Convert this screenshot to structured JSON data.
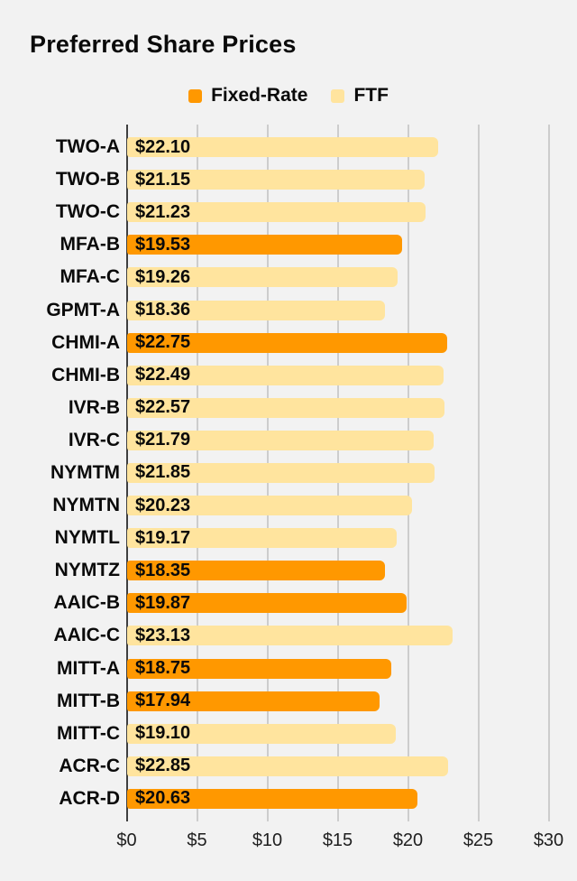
{
  "title": "Preferred Share Prices",
  "colors": {
    "fixed_rate": "#ff9800",
    "ftf": "#ffe49e",
    "background": "#f2f2f2",
    "gridline": "#cdcdcd",
    "axis_line": "#3f3f3f",
    "text": "#0a0a0a"
  },
  "legend": {
    "items": [
      {
        "label": "Fixed-Rate",
        "color_key": "fixed_rate"
      },
      {
        "label": "FTF",
        "color_key": "ftf"
      }
    ]
  },
  "chart_data": {
    "type": "bar",
    "orientation": "horizontal",
    "title": "Preferred Share Prices",
    "categories": [
      "TWO-A",
      "TWO-B",
      "TWO-C",
      "MFA-B",
      "MFA-C",
      "GPMT-A",
      "CHMI-A",
      "CHMI-B",
      "IVR-B",
      "IVR-C",
      "NYMTM",
      "NYMTN",
      "NYMTL",
      "NYMTZ",
      "AAIC-B",
      "AAIC-C",
      "MITT-A",
      "MITT-B",
      "MITT-C",
      "ACR-C",
      "ACR-D"
    ],
    "values": [
      22.1,
      21.15,
      21.23,
      19.53,
      19.26,
      18.36,
      22.75,
      22.49,
      22.57,
      21.79,
      21.85,
      20.23,
      19.17,
      18.35,
      19.87,
      23.13,
      18.75,
      17.94,
      19.1,
      22.85,
      20.63
    ],
    "value_labels": [
      "$22.10",
      "$21.15",
      "$21.23",
      "$19.53",
      "$19.26",
      "$18.36",
      "$22.75",
      "$22.49",
      "$22.57",
      "$21.79",
      "$21.85",
      "$20.23",
      "$19.17",
      "$18.35",
      "$19.87",
      "$23.13",
      "$18.75",
      "$17.94",
      "$19.10",
      "$22.85",
      "$20.63"
    ],
    "series_by_bar": [
      "FTF",
      "FTF",
      "FTF",
      "Fixed-Rate",
      "FTF",
      "FTF",
      "Fixed-Rate",
      "FTF",
      "FTF",
      "FTF",
      "FTF",
      "FTF",
      "FTF",
      "Fixed-Rate",
      "Fixed-Rate",
      "FTF",
      "Fixed-Rate",
      "Fixed-Rate",
      "FTF",
      "FTF",
      "Fixed-Rate"
    ],
    "x_ticks": [
      0,
      5,
      10,
      15,
      20,
      25,
      30
    ],
    "x_tick_labels": [
      "$0",
      "$5",
      "$10",
      "$15",
      "$20",
      "$25",
      "$30"
    ],
    "xlim": [
      0,
      30
    ],
    "grid": true,
    "legend_position": "top-center",
    "value_label_position": "inside-left"
  }
}
